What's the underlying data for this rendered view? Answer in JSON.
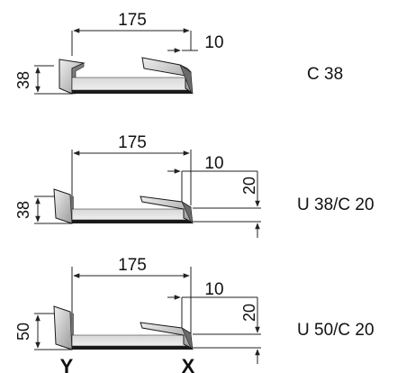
{
  "profiles": [
    {
      "name": "C 38",
      "width": "175",
      "lip": "10",
      "height": "38",
      "rise": ""
    },
    {
      "name": "U 38/C 20",
      "width": "175",
      "lip": "10",
      "height": "38",
      "rise": "20"
    },
    {
      "name": "U 50/C 20",
      "width": "175",
      "lip": "10",
      "height": "50",
      "rise": "20"
    }
  ],
  "markers": {
    "left": "Y",
    "right": "X"
  },
  "colors": {
    "steel_light": "#e4e4e4",
    "steel_mid": "#b8b8b8",
    "steel_dark": "#555555",
    "edge": "#1a1a1a",
    "line": "#222222"
  }
}
